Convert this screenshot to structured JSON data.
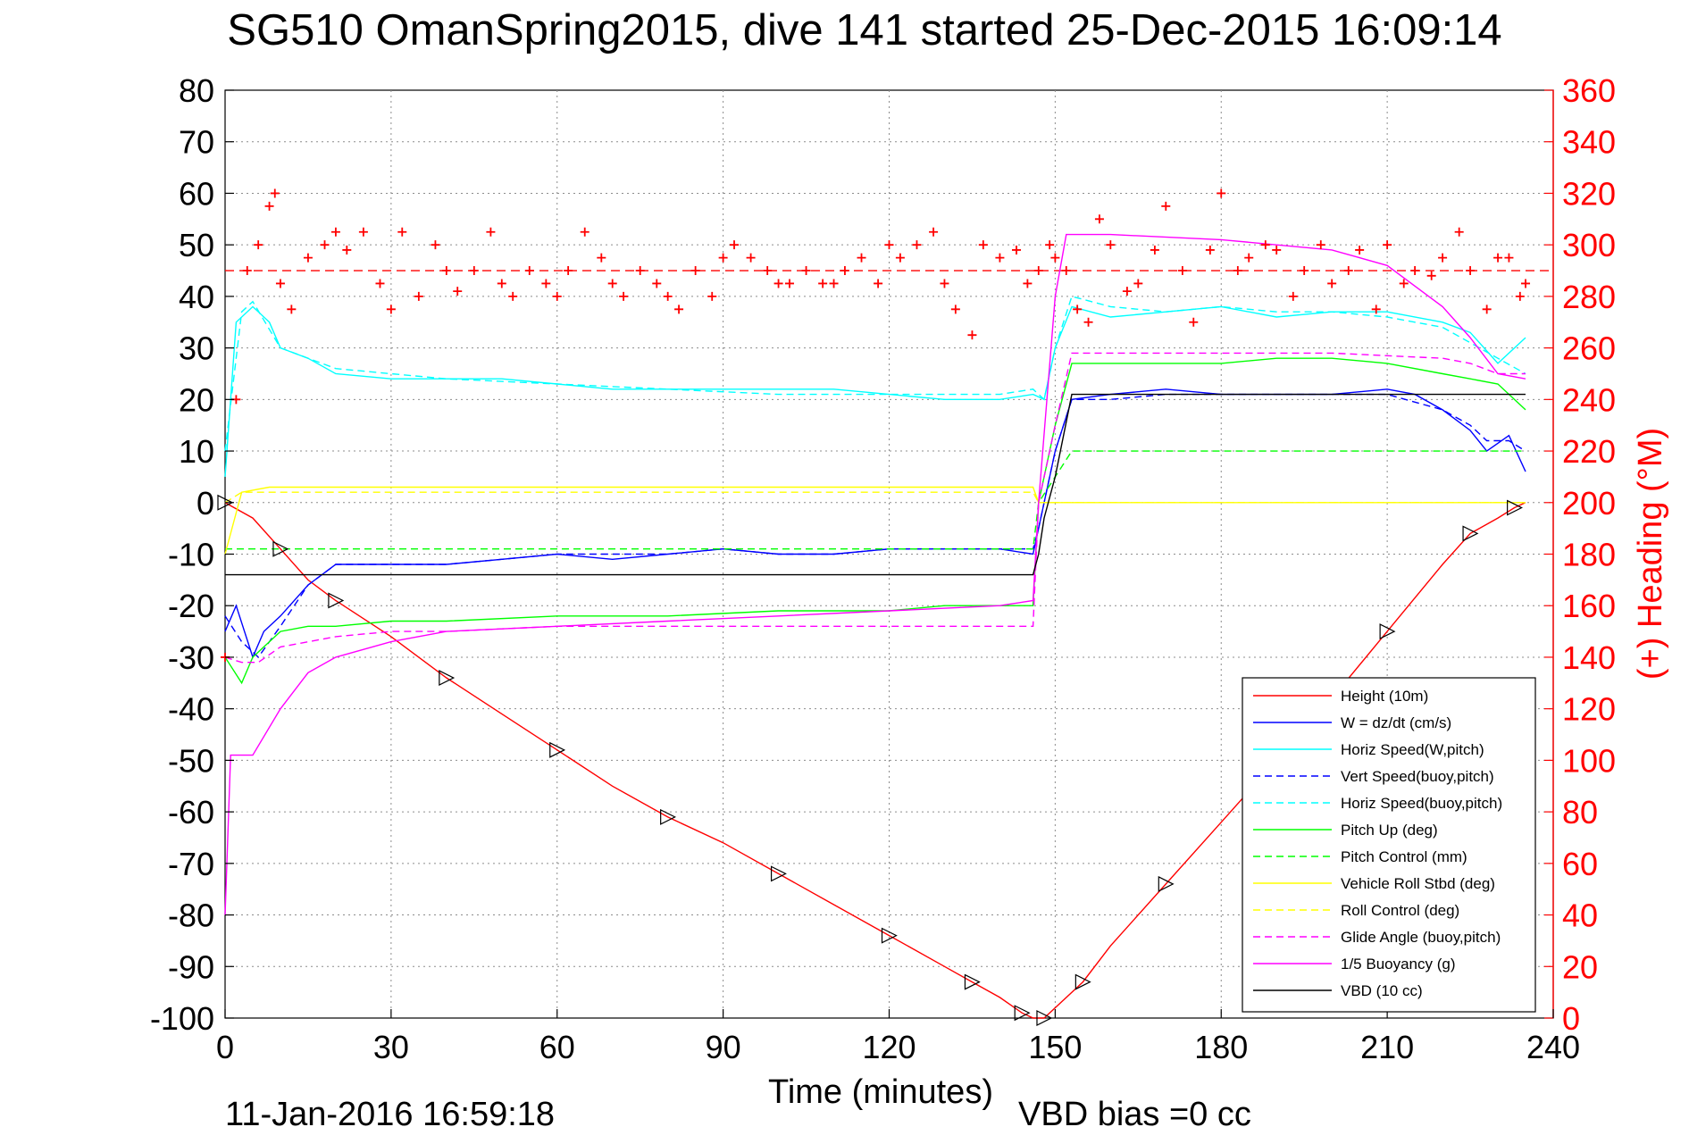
{
  "chart_data": {
    "type": "line",
    "title": "SG510 OmanSpring2015, dive 141 started 25-Dec-2015 16:09:14",
    "xlabel": "Time (minutes)",
    "ylabel": "",
    "y2label": "(+) Heading (°M)",
    "footer_date": "11-Jan-2016 16:59:18",
    "footer_bias": "VBD bias =0 cc",
    "xlim": [
      0,
      240
    ],
    "ylim": [
      -100,
      80
    ],
    "y2lim": [
      0,
      360
    ],
    "grid": true,
    "legend_position": "bottom-right",
    "xticks": [
      0,
      30,
      60,
      90,
      120,
      150,
      180,
      210,
      240
    ],
    "yticks": [
      80,
      70,
      60,
      50,
      40,
      30,
      20,
      10,
      0,
      -10,
      -20,
      -30,
      -40,
      -50,
      -60,
      -70,
      -80,
      -90,
      -100
    ],
    "y2ticks": [
      360,
      340,
      320,
      300,
      280,
      260,
      240,
      220,
      200,
      180,
      160,
      140,
      120,
      100,
      80,
      60,
      40,
      20,
      0
    ],
    "heading_reference": 290,
    "series": [
      {
        "name": "Height (10m)",
        "color": "#ff0000",
        "dash": "solid",
        "x": [
          0,
          5,
          10,
          15,
          20,
          30,
          40,
          50,
          60,
          70,
          80,
          90,
          100,
          110,
          120,
          130,
          135,
          140,
          144,
          146,
          148,
          150,
          155,
          160,
          170,
          180,
          190,
          200,
          210,
          220,
          225,
          230,
          233,
          235
        ],
        "y": [
          0,
          -3,
          -9,
          -15,
          -19,
          -26,
          -34,
          -41,
          -48,
          -55,
          -61,
          -66,
          -72,
          -78,
          -84,
          -90,
          -93,
          -96,
          -99,
          -100,
          -100,
          -98,
          -93,
          -86,
          -74,
          -62,
          -50,
          -38,
          -25,
          -12,
          -6,
          -3,
          -1,
          0
        ]
      },
      {
        "name": "W = dz/dt (cm/s)",
        "color": "#0000ff",
        "dash": "solid",
        "x": [
          0,
          2,
          5,
          7,
          10,
          15,
          20,
          30,
          40,
          50,
          60,
          70,
          80,
          90,
          100,
          110,
          120,
          130,
          140,
          146,
          147,
          150,
          153,
          160,
          170,
          180,
          190,
          200,
          210,
          215,
          220,
          225,
          228,
          232,
          235
        ],
        "y": [
          -25,
          -20,
          -30,
          -25,
          -22,
          -16,
          -12,
          -12,
          -12,
          -11,
          -10,
          -11,
          -10,
          -9,
          -10,
          -10,
          -9,
          -9,
          -9,
          -10,
          -5,
          10,
          20,
          21,
          22,
          21,
          21,
          21,
          22,
          21,
          18,
          14,
          10,
          13,
          6
        ]
      },
      {
        "name": "Horiz Speed(W,pitch)",
        "color": "#00ffff",
        "dash": "solid",
        "x": [
          0,
          2,
          5,
          8,
          10,
          15,
          20,
          30,
          40,
          50,
          60,
          70,
          80,
          90,
          100,
          110,
          120,
          130,
          140,
          146,
          148,
          150,
          153,
          160,
          170,
          180,
          190,
          200,
          210,
          220,
          225,
          230,
          235
        ],
        "y": [
          5,
          35,
          38,
          35,
          30,
          28,
          25,
          24,
          24,
          24,
          23,
          22,
          22,
          22,
          22,
          22,
          21,
          20,
          20,
          21,
          20,
          30,
          38,
          36,
          37,
          38,
          36,
          37,
          37,
          35,
          33,
          27,
          32
        ]
      },
      {
        "name": "Vert Speed(buoy,pitch)",
        "color": "#0000ff",
        "dash": "dashed",
        "x": [
          0,
          3,
          6,
          10,
          15,
          20,
          30,
          40,
          50,
          60,
          70,
          80,
          90,
          100,
          110,
          120,
          130,
          140,
          146,
          147,
          150,
          153,
          160,
          170,
          180,
          190,
          200,
          210,
          220,
          225,
          228,
          232,
          235
        ],
        "y": [
          -22,
          -27,
          -30,
          -24,
          -16,
          -12,
          -12,
          -12,
          -11,
          -10,
          -10,
          -10,
          -9,
          -10,
          -10,
          -9,
          -9,
          -9,
          -9,
          -5,
          10,
          20,
          20,
          21,
          21,
          21,
          21,
          21,
          18,
          15,
          12,
          12,
          10
        ]
      },
      {
        "name": "Horiz Speed(buoy,pitch)",
        "color": "#00ffff",
        "dash": "dashed",
        "x": [
          0,
          3,
          5,
          10,
          20,
          30,
          40,
          60,
          80,
          100,
          120,
          140,
          146,
          148,
          150,
          153,
          160,
          170,
          180,
          190,
          200,
          210,
          220,
          225,
          230,
          235
        ],
        "y": [
          10,
          37,
          39,
          30,
          26,
          25,
          24,
          23,
          22,
          21,
          21,
          21,
          22,
          20,
          30,
          40,
          38,
          37,
          38,
          37,
          37,
          36,
          34,
          31,
          28,
          25
        ]
      },
      {
        "name": "Pitch Up (deg)",
        "color": "#00ff00",
        "dash": "solid",
        "x": [
          0,
          3,
          5,
          7,
          10,
          15,
          20,
          30,
          40,
          60,
          80,
          100,
          120,
          130,
          140,
          146,
          147,
          150,
          153,
          160,
          170,
          180,
          190,
          200,
          210,
          220,
          225,
          230,
          235
        ],
        "y": [
          -30,
          -35,
          -30,
          -28,
          -25,
          -24,
          -24,
          -23,
          -23,
          -22,
          -22,
          -21,
          -21,
          -20,
          -20,
          -20,
          0,
          15,
          27,
          27,
          27,
          27,
          28,
          28,
          27,
          25,
          24,
          23,
          18
        ]
      },
      {
        "name": "Pitch Control (mm)",
        "color": "#00ff00",
        "dash": "dashed",
        "x": [
          0,
          3,
          6,
          15,
          30,
          60,
          90,
          120,
          146,
          147,
          150,
          153,
          160,
          170,
          180,
          190,
          200,
          210,
          220,
          230,
          235
        ],
        "y": [
          -9,
          -9,
          -9,
          -9,
          -9,
          -9,
          -9,
          -9,
          -9,
          0,
          5,
          10,
          10,
          10,
          10,
          10,
          10,
          10,
          10,
          10,
          10
        ]
      },
      {
        "name": "Vehicle Roll Stbd (deg)",
        "color": "#ffff00",
        "dash": "solid",
        "x": [
          0,
          3,
          8,
          15,
          30,
          60,
          90,
          120,
          146,
          147,
          150,
          155,
          170,
          190,
          210,
          225,
          230,
          235
        ],
        "y": [
          -10,
          2,
          3,
          3,
          3,
          3,
          3,
          3,
          3,
          0,
          0,
          0,
          0,
          0,
          0,
          0,
          0,
          0
        ]
      },
      {
        "name": "Roll Control (deg)",
        "color": "#ffff00",
        "dash": "dashed",
        "x": [
          0,
          3,
          8,
          15,
          30,
          60,
          90,
          120,
          146,
          147,
          150,
          170,
          190,
          210,
          230,
          235
        ],
        "y": [
          0,
          2,
          2,
          2,
          2,
          2,
          2,
          2,
          2,
          0,
          0,
          0,
          0,
          0,
          0,
          0
        ]
      },
      {
        "name": "Glide Angle (buoy,pitch)",
        "color": "#ff00ff",
        "dash": "dashed",
        "x": [
          0,
          3,
          6,
          10,
          20,
          30,
          40,
          60,
          80,
          100,
          120,
          140,
          146,
          147,
          150,
          153,
          160,
          180,
          200,
          220,
          225,
          230,
          235
        ],
        "y": [
          -30,
          -31,
          -31,
          -28,
          -26,
          -25,
          -25,
          -24,
          -24,
          -24,
          -24,
          -24,
          -24,
          0,
          15,
          29,
          29,
          29,
          29,
          28,
          27,
          25,
          25
        ]
      },
      {
        "name": "1/5 Buoyancy (g)",
        "color": "#ff00ff",
        "dash": "solid",
        "x": [
          0,
          1,
          2,
          5,
          10,
          15,
          20,
          30,
          40,
          60,
          80,
          100,
          120,
          140,
          146,
          147,
          150,
          152,
          160,
          180,
          200,
          210,
          220,
          225,
          230,
          235
        ],
        "y": [
          -80,
          -49,
          -49,
          -49,
          -40,
          -33,
          -30,
          -27,
          -25,
          -24,
          -23,
          -22,
          -21,
          -20,
          -19,
          0,
          40,
          52,
          52,
          51,
          49,
          46,
          38,
          32,
          25,
          24
        ]
      },
      {
        "name": "VBD (10 cc)",
        "color": "#000000",
        "dash": "solid",
        "x": [
          0,
          1,
          146,
          147,
          148,
          150,
          153,
          160,
          200,
          235
        ],
        "y": [
          -14,
          -14,
          -14,
          -10,
          -3,
          5,
          21,
          21,
          21,
          21
        ]
      }
    ],
    "heading": {
      "name": "Heading",
      "color": "#ff0000",
      "marker": "+",
      "x": [
        0,
        2,
        4,
        6,
        8,
        9,
        10,
        12,
        15,
        18,
        20,
        22,
        25,
        28,
        30,
        32,
        35,
        38,
        40,
        42,
        45,
        48,
        50,
        52,
        55,
        58,
        60,
        62,
        65,
        68,
        70,
        72,
        75,
        78,
        80,
        82,
        85,
        88,
        90,
        92,
        95,
        98,
        100,
        102,
        105,
        108,
        110,
        112,
        115,
        118,
        120,
        122,
        125,
        128,
        130,
        132,
        135,
        137,
        140,
        143,
        145,
        147,
        149,
        150,
        152,
        154,
        156,
        158,
        160,
        163,
        165,
        168,
        170,
        173,
        175,
        178,
        180,
        183,
        185,
        188,
        190,
        193,
        195,
        198,
        200,
        203,
        205,
        208,
        210,
        213,
        215,
        218,
        220,
        223,
        225,
        228,
        230,
        232,
        234,
        235
      ],
      "y": [
        140,
        240,
        290,
        300,
        315,
        320,
        285,
        275,
        295,
        300,
        305,
        298,
        305,
        285,
        275,
        305,
        280,
        300,
        290,
        282,
        290,
        305,
        285,
        280,
        290,
        285,
        280,
        290,
        305,
        295,
        285,
        280,
        290,
        285,
        280,
        275,
        290,
        280,
        295,
        300,
        295,
        290,
        285,
        285,
        290,
        285,
        285,
        290,
        295,
        285,
        300,
        295,
        300,
        305,
        285,
        275,
        265,
        300,
        295,
        298,
        285,
        290,
        300,
        295,
        290,
        275,
        270,
        310,
        300,
        282,
        285,
        298,
        315,
        290,
        270,
        298,
        320,
        290,
        295,
        300,
        298,
        280,
        290,
        300,
        285,
        290,
        298,
        275,
        300,
        285,
        290,
        288,
        295,
        305,
        290,
        275,
        295,
        295,
        280,
        285
      ]
    }
  }
}
